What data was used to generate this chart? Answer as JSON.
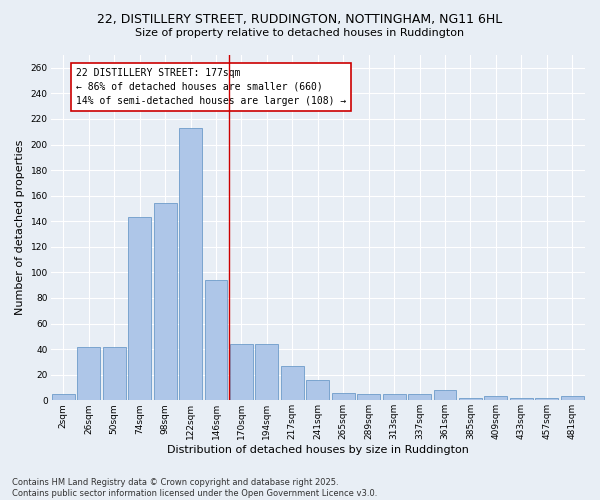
{
  "title": "22, DISTILLERY STREET, RUDDINGTON, NOTTINGHAM, NG11 6HL",
  "subtitle": "Size of property relative to detached houses in Ruddington",
  "xlabel": "Distribution of detached houses by size in Ruddington",
  "ylabel": "Number of detached properties",
  "categories": [
    "2sqm",
    "26sqm",
    "50sqm",
    "74sqm",
    "98sqm",
    "122sqm",
    "146sqm",
    "170sqm",
    "194sqm",
    "217sqm",
    "241sqm",
    "265sqm",
    "289sqm",
    "313sqm",
    "337sqm",
    "361sqm",
    "385sqm",
    "409sqm",
    "433sqm",
    "457sqm",
    "481sqm"
  ],
  "values": [
    5,
    42,
    42,
    143,
    154,
    213,
    94,
    44,
    44,
    27,
    16,
    6,
    5,
    5,
    5,
    8,
    2,
    3,
    2,
    2,
    3
  ],
  "bar_color": "#aec6e8",
  "bar_edge_color": "#5a8fc2",
  "vline_x": 6.5,
  "vline_color": "#cc0000",
  "annotation_text": "22 DISTILLERY STREET: 177sqm\n← 86% of detached houses are smaller (660)\n14% of semi-detached houses are larger (108) →",
  "annotation_box_color": "#ffffff",
  "annotation_box_edge_color": "#cc0000",
  "ylim": [
    0,
    270
  ],
  "yticks": [
    0,
    20,
    40,
    60,
    80,
    100,
    120,
    140,
    160,
    180,
    200,
    220,
    240,
    260
  ],
  "bg_color": "#e8eef5",
  "plot_bg_color": "#e8eef5",
  "footer": "Contains HM Land Registry data © Crown copyright and database right 2025.\nContains public sector information licensed under the Open Government Licence v3.0.",
  "title_fontsize": 9,
  "subtitle_fontsize": 8,
  "xlabel_fontsize": 8,
  "ylabel_fontsize": 8,
  "tick_fontsize": 6.5,
  "annotation_fontsize": 7,
  "footer_fontsize": 6
}
